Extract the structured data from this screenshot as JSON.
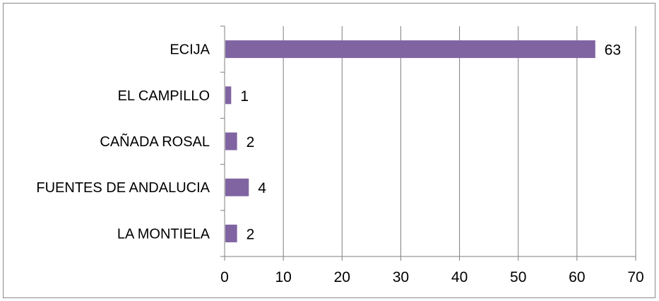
{
  "chart_data": {
    "type": "bar",
    "orientation": "horizontal",
    "categories": [
      "ECIJA",
      "EL CAMPILLO",
      "CAÑADA ROSAL",
      "FUENTES DE ANDALUCIA",
      "LA MONTIELA"
    ],
    "values": [
      63,
      1,
      2,
      4,
      2
    ],
    "data_labels": [
      "63",
      "1",
      "2",
      "4",
      "2"
    ],
    "x_ticks": [
      "0",
      "10",
      "20",
      "30",
      "40",
      "50",
      "60",
      "70"
    ],
    "xlim": [
      0,
      70
    ],
    "grid": "vertical",
    "legend": "none",
    "colors": {
      "bar": "#8064A2",
      "grid": "#7f7f7f",
      "axis": "#7f7f7f",
      "frame": "#8a8a8a"
    }
  }
}
